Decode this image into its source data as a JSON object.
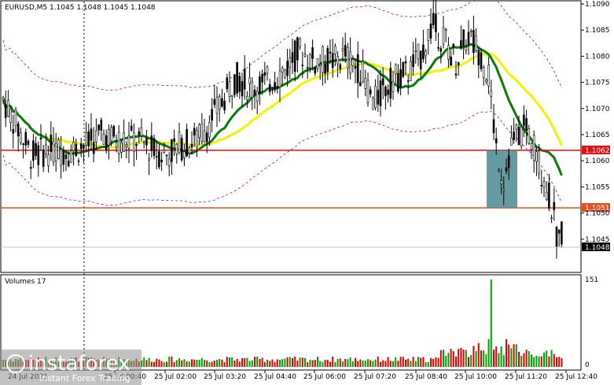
{
  "chart_data": {
    "type": "candlestick",
    "symbol_header": "EURUSD,M5  1.1045 1.1048 1.1045 1.1048",
    "price_axis": {
      "min": 1.104,
      "max": 1.109,
      "ticks": [
        "1.1090",
        "1.1085",
        "1.1080",
        "1.1075",
        "1.1070",
        "1.1065",
        "1.1060",
        "1.1055",
        "1.1050",
        "1.1045"
      ]
    },
    "time_axis": {
      "ticks": [
        "24 Jul 2021",
        "25 Jul 00:40",
        "25 Jul 02:00",
        "25 Jul 03:20",
        "25 Jul 04:40",
        "25 Jul 06:00",
        "25 Jul 07:20",
        "25 Jul 08:40",
        "25 Jul 10:00",
        "25 Jul 11:20",
        "25 Jul 12:40"
      ]
    },
    "levels": [
      {
        "price": 1.1062,
        "label": "1.1062",
        "color": "#e01010"
      },
      {
        "price": 1.1051,
        "label": "1.1051",
        "color": "#e05020"
      }
    ],
    "current_price": {
      "price": 1.1048,
      "label": "1.1048"
    },
    "highlight_box": {
      "from_price": 1.1062,
      "to_price": 1.1051,
      "color": "#4a8a92"
    },
    "volumes": {
      "title": "Volumes 17",
      "max_label": "151",
      "zero_label": "0",
      "peak": 151
    }
  },
  "colors": {
    "bull": "#000000",
    "bear": "#000000",
    "ma_fast": "#0a7a0a",
    "ma_slow": "#f2f200",
    "envelope": "#b000b0",
    "vol_up": "#00a000",
    "vol_down": "#e00000"
  },
  "watermark": {
    "brand": "instaforex",
    "tagline": "Instant Forex Trading"
  }
}
